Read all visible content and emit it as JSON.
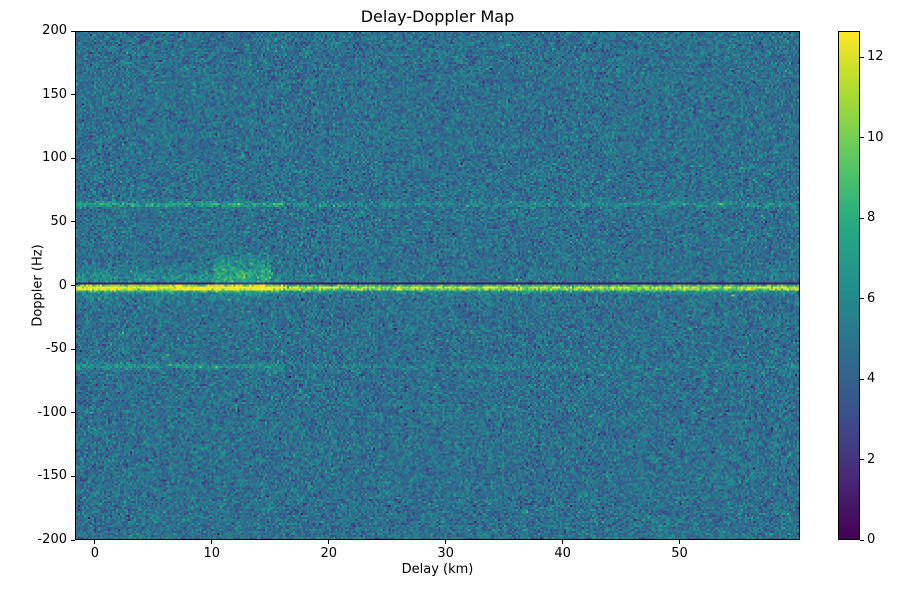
{
  "chart_data": {
    "type": "heatmap",
    "title": "Delay-Doppler Map",
    "xlabel": "Delay (km)",
    "ylabel": "Doppler (Hz)",
    "xlim": [
      -1.7,
      60.3
    ],
    "ylim": [
      -200,
      200
    ],
    "xticks": [
      0,
      10,
      20,
      30,
      40,
      50
    ],
    "yticks": [
      -200,
      -150,
      -100,
      -50,
      0,
      50,
      100,
      150,
      200
    ],
    "grid": false,
    "legend": "none",
    "colormap": "viridis",
    "colorbar": {
      "min": 0,
      "max": 12.65,
      "ticks": [
        0,
        2,
        4,
        6,
        8,
        10,
        12
      ]
    },
    "noise": {
      "mean": 4.7,
      "std": 1.05,
      "seed": 20
    },
    "features": [
      {
        "name": "specular-glow",
        "doppler_hz": 2,
        "sigma_hz": 7,
        "amp_near": 1.7,
        "amp_far": 0.4,
        "near_delay_km": 16,
        "speckle": 0.85
      },
      {
        "name": "specular-ridge",
        "doppler_hz": -2,
        "sigma_hz": 1.6,
        "amp_near": 8.5,
        "amp_far": 6.5,
        "near_delay_km": 16,
        "speckle": 0.45
      },
      {
        "name": "zero-doppler-dark-line",
        "doppler_hz": 1.2,
        "sigma_hz": 0.8,
        "mode": "set",
        "value": 0.6
      },
      {
        "name": "upper-harmonic-line",
        "doppler_hz": 64,
        "sigma_hz": 1.4,
        "amp_near": 2.8,
        "amp_far": 1.3,
        "near_delay_km": 16,
        "speckle": 0.8
      },
      {
        "name": "lower-harmonic-line",
        "doppler_hz": -64,
        "sigma_hz": 1.4,
        "amp_near": 1.9,
        "amp_far": 0.7,
        "near_delay_km": 16,
        "speckle": 0.8
      },
      {
        "name": "near-range-clutter",
        "doppler_hz": 10,
        "sigma_hz": 9,
        "amp_near": 1.7,
        "amp_far": 0,
        "near_delay_km": 15,
        "min_delay_km": 10,
        "speckle": 0.9
      }
    ],
    "points": [
      {
        "delay_km": 54.5,
        "doppler_hz": -8,
        "value": 10.5
      },
      {
        "delay_km": 13.2,
        "doppler_hz": 18,
        "value": 9.2
      },
      {
        "delay_km": 12.6,
        "doppler_hz": 10,
        "value": 9.8
      },
      {
        "delay_km": 13.0,
        "doppler_hz": 25,
        "value": 8.2
      },
      {
        "delay_km": 23.2,
        "doppler_hz": -2,
        "value": 12.0
      },
      {
        "delay_km": 30.5,
        "doppler_hz": -2,
        "value": 11.5
      },
      {
        "delay_km": 43.8,
        "doppler_hz": -2,
        "value": 11.0
      },
      {
        "delay_km": -0.5,
        "doppler_hz": -100,
        "value": 8.5
      }
    ]
  }
}
